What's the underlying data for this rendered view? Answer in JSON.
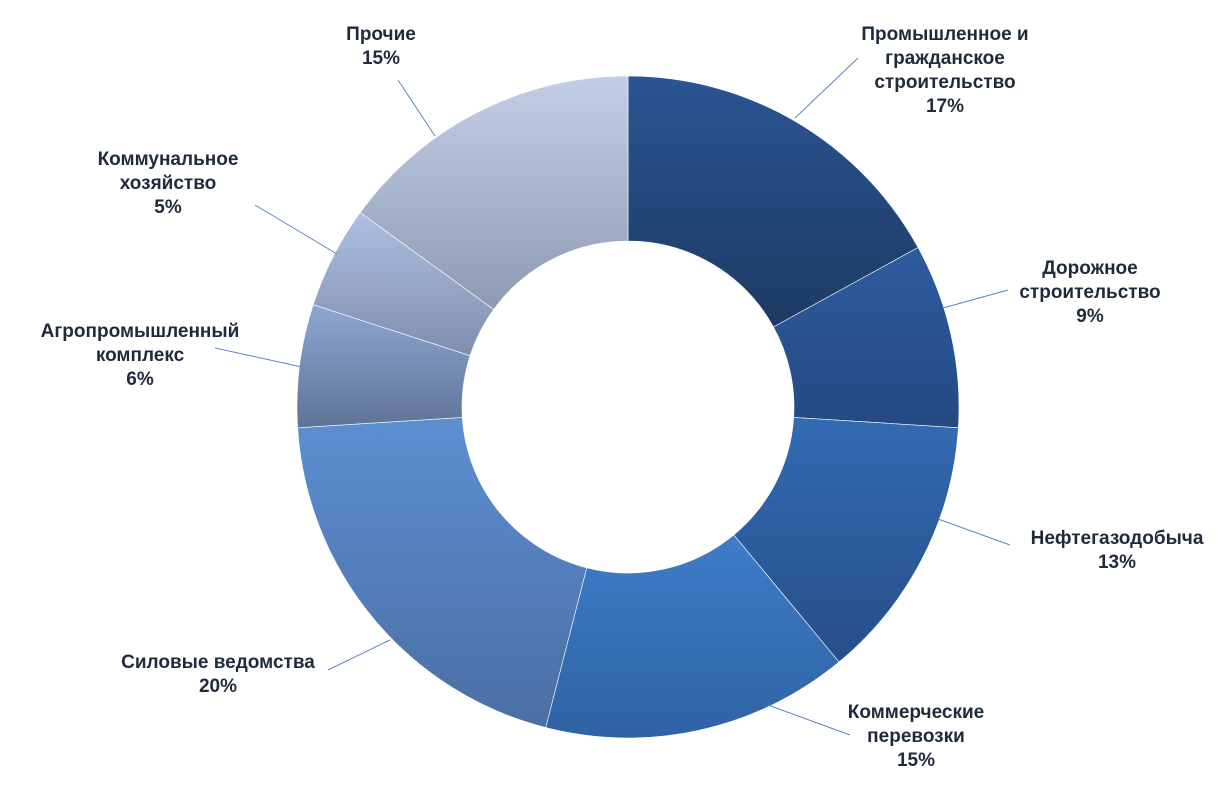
{
  "chart_data": {
    "type": "pie",
    "variant": "donut",
    "title": "",
    "categories": [
      "Промышленное и гражданское строительство",
      "Дорожное строительство",
      "Нефтегазодобыча",
      "Коммерческие перевозки",
      "Силовые ведомства",
      "Агропромышленный комплекс",
      "Коммунальное хозяйство",
      "Прочие"
    ],
    "values": [
      17,
      9,
      13,
      15,
      20,
      6,
      5,
      15
    ],
    "value_labels": [
      "17%",
      "9%",
      "13%",
      "15%",
      "20%",
      "6%",
      "5%",
      "15%"
    ],
    "label_lines": [
      [
        "Промышленное и",
        "гражданское",
        "строительство"
      ],
      [
        "Дорожное",
        "строительство"
      ],
      [
        "Нефтегазодобыча"
      ],
      [
        "Коммерческие",
        "перевозки"
      ],
      [
        "Силовые ведомства"
      ],
      [
        "Агропромышленный",
        "комплекс"
      ],
      [
        "Коммунальное",
        "хозяйство"
      ],
      [
        "Прочие"
      ]
    ],
    "colors": [
      [
        "#2a5593",
        "#1d3a63"
      ],
      [
        "#2d5c9f",
        "#234a82"
      ],
      [
        "#336bb4",
        "#264f88"
      ],
      [
        "#3d7dc8",
        "#2f62a3"
      ],
      [
        "#5c8fd3",
        "#4a6fa3"
      ],
      [
        "#8ea7d2",
        "#5f7398"
      ],
      [
        "#aec0e0",
        "#7e8fac"
      ],
      [
        "#c3cfe6",
        "#8d9ab2"
      ]
    ],
    "legend": "none",
    "start_angle": "top-clockwise"
  }
}
